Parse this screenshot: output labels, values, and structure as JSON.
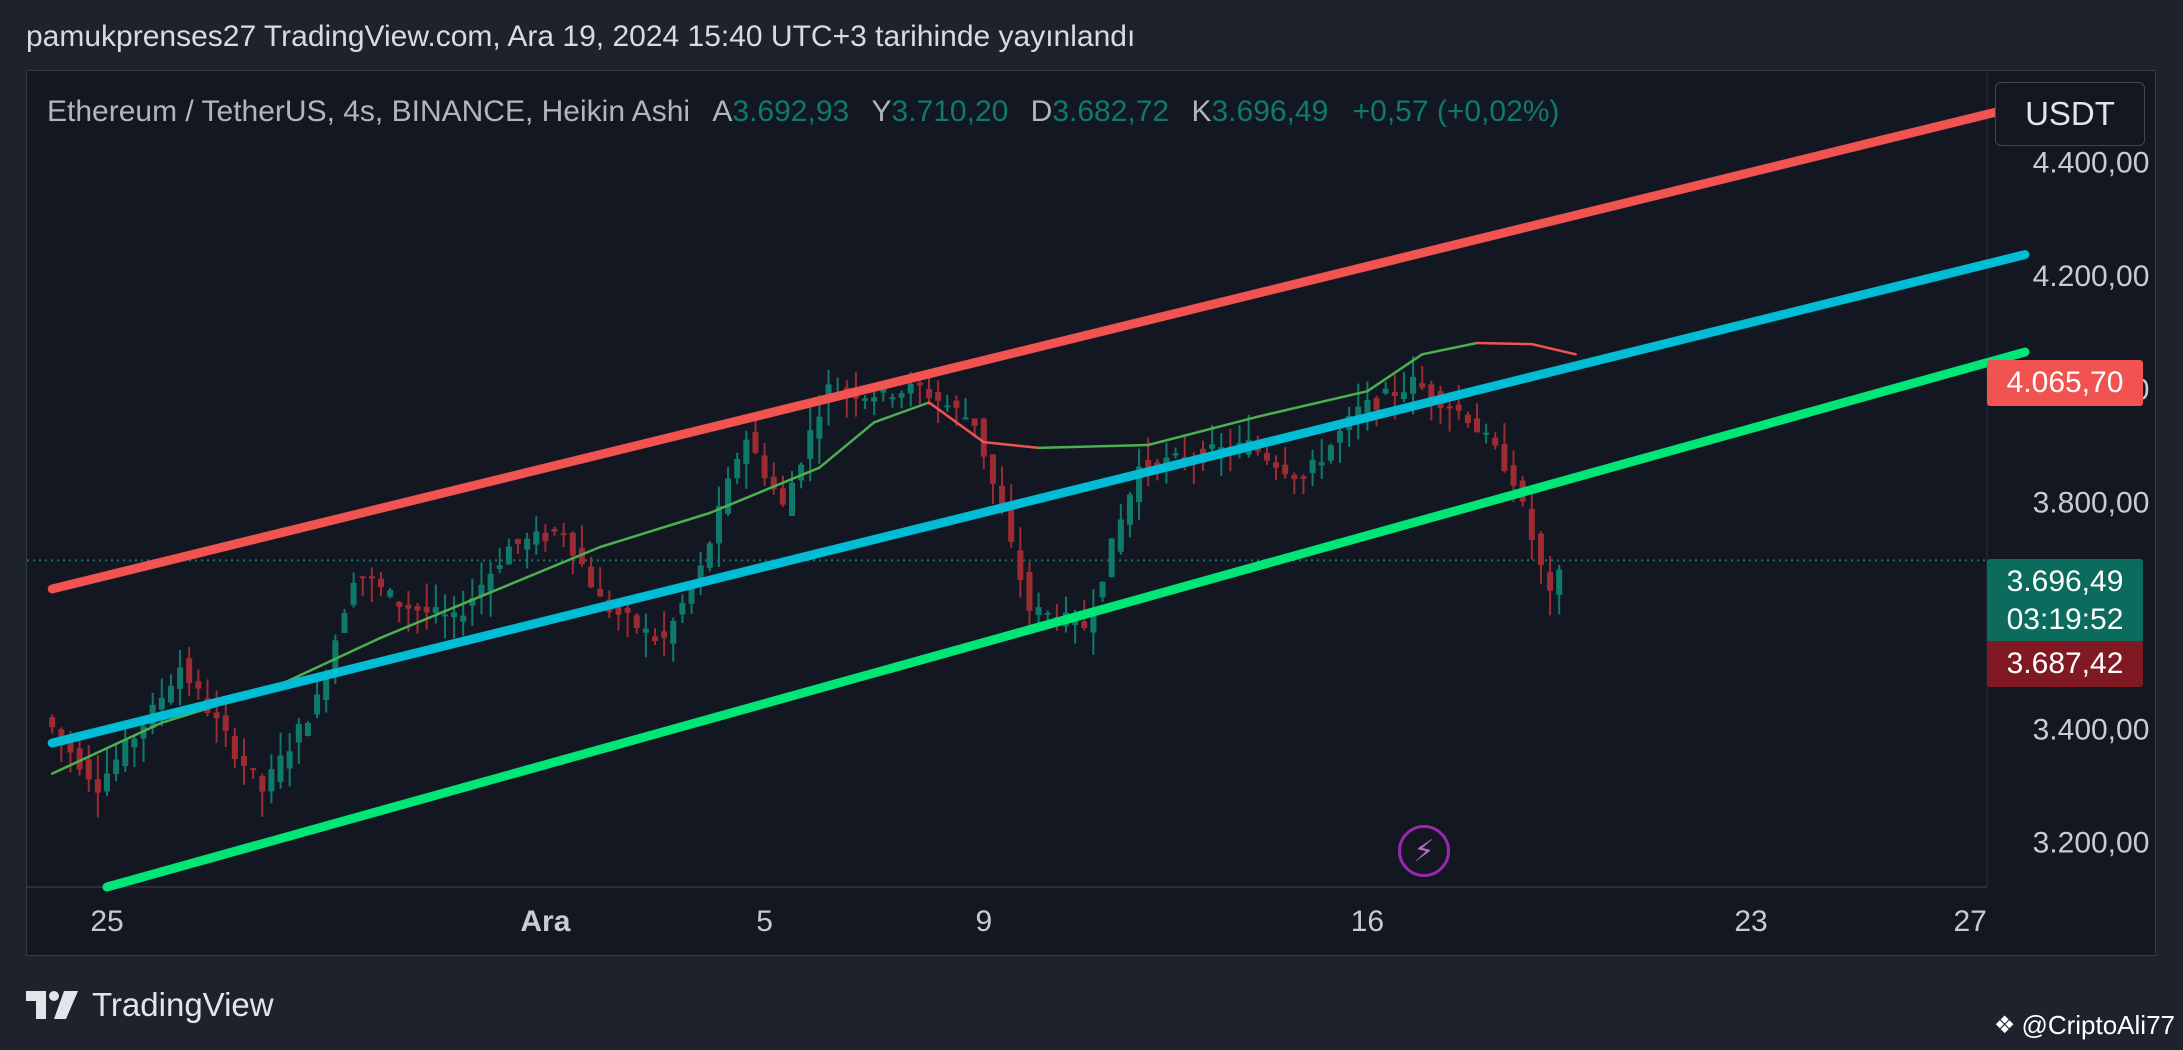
{
  "header": {
    "published_text": "pamukprenses27 TradingView.com, Ara 19, 2024 15:40 UTC+3 tarihinde yayınlandı"
  },
  "legend": {
    "symbol": "Ethereum / TetherUS, 4s, BINANCE, Heikin Ashi",
    "open_label": "A",
    "open_value": "3.692,93",
    "high_label": "Y",
    "high_value": "3.710,20",
    "low_label": "D",
    "low_value": "3.682,72",
    "close_label": "K",
    "close_value": "3.696,49",
    "change": "+0,57 (+0,02%)"
  },
  "unit_button": {
    "label": "USDT"
  },
  "price_tags": {
    "resistance": "4.065,70",
    "last_price": "3.696,49",
    "countdown": "03:19:52",
    "previous": "3.687,42"
  },
  "footer": {
    "brand": "TradingView",
    "attribution": "@CriptoAli77"
  },
  "colors": {
    "background": "#131722",
    "up_candle": "#0f7a6b",
    "down_candle": "#9c2b34",
    "upper_channel": "#f05350",
    "mid_channel": "#00bcd4",
    "lower_channel": "#00e676",
    "ma_up": "#4caf50",
    "ma_down": "#ef5350"
  },
  "chart_data": {
    "type": "candlestick",
    "y_axis": {
      "min": 3120,
      "max": 4560,
      "ticks": [
        {
          "value": 4400,
          "label": "4.400,00"
        },
        {
          "value": 4200,
          "label": "4.200,00"
        },
        {
          "value": 4000,
          "label": "4.000,00"
        },
        {
          "value": 3800,
          "label": "3.800,00"
        },
        {
          "value": 3400,
          "label": "3.400,00"
        },
        {
          "value": 3200,
          "label": "3.200,00"
        }
      ]
    },
    "x_axis": {
      "ticks": [
        {
          "day": -7,
          "label": "25",
          "bold": false
        },
        {
          "day": 1,
          "label": "Ara",
          "bold": true
        },
        {
          "day": 5,
          "label": "5",
          "bold": false
        },
        {
          "day": 9,
          "label": "9",
          "bold": false
        },
        {
          "day": 16,
          "label": "16",
          "bold": false
        },
        {
          "day": 23,
          "label": "23",
          "bold": false
        },
        {
          "day": 27,
          "label": "27",
          "bold": false
        }
      ]
    },
    "current_price": 3696.49,
    "channels": [
      {
        "role": "upper",
        "color": "#f05350",
        "start": {
          "day": -8,
          "price": 3646
        },
        "end": {
          "day": 28,
          "price": 4500
        }
      },
      {
        "role": "middle",
        "color": "#00bcd4",
        "start": {
          "day": -8,
          "price": 3374
        },
        "end": {
          "day": 28,
          "price": 4236
        }
      },
      {
        "role": "lower",
        "color": "#00e676",
        "start": {
          "day": -7,
          "price": 3120
        },
        "end": {
          "day": 28,
          "price": 4064
        }
      }
    ],
    "moving_average": [
      {
        "day": -8,
        "price": 3320
      },
      {
        "day": -6,
        "price": 3410
      },
      {
        "day": -4,
        "price": 3470
      },
      {
        "day": -2,
        "price": 3560
      },
      {
        "day": 0,
        "price": 3640
      },
      {
        "day": 2,
        "price": 3720
      },
      {
        "day": 4,
        "price": 3780
      },
      {
        "day": 6,
        "price": 3860
      },
      {
        "day": 7,
        "price": 3940
      },
      {
        "day": 8,
        "price": 3975
      },
      {
        "day": 9,
        "price": 3905
      },
      {
        "day": 10,
        "price": 3895
      },
      {
        "day": 12,
        "price": 3900
      },
      {
        "day": 14,
        "price": 3950
      },
      {
        "day": 16,
        "price": 3995
      },
      {
        "day": 17,
        "price": 4060
      },
      {
        "day": 18,
        "price": 4080
      },
      {
        "day": 19,
        "price": 4078
      },
      {
        "day": 19.8,
        "price": 4060
      }
    ],
    "price_path": [
      {
        "day": -8,
        "price": 3420
      },
      {
        "day": -7,
        "price": 3300
      },
      {
        "day": -6,
        "price": 3430
      },
      {
        "day": -5.5,
        "price": 3510
      },
      {
        "day": -4.5,
        "price": 3360
      },
      {
        "day": -4,
        "price": 3290
      },
      {
        "day": -3,
        "price": 3450
      },
      {
        "day": -2.3,
        "price": 3680
      },
      {
        "day": -1.5,
        "price": 3620
      },
      {
        "day": -0.5,
        "price": 3590
      },
      {
        "day": 0.5,
        "price": 3720
      },
      {
        "day": 1.5,
        "price": 3750
      },
      {
        "day": 2.2,
        "price": 3620
      },
      {
        "day": 3.3,
        "price": 3550
      },
      {
        "day": 4,
        "price": 3680
      },
      {
        "day": 4.8,
        "price": 3920
      },
      {
        "day": 5.5,
        "price": 3790
      },
      {
        "day": 6.3,
        "price": 4000
      },
      {
        "day": 7,
        "price": 3990
      },
      {
        "day": 8,
        "price": 4000
      },
      {
        "day": 9,
        "price": 3940
      },
      {
        "day": 10,
        "price": 3610
      },
      {
        "day": 11,
        "price": 3580
      },
      {
        "day": 12,
        "price": 3860
      },
      {
        "day": 13,
        "price": 3880
      },
      {
        "day": 14,
        "price": 3900
      },
      {
        "day": 15,
        "price": 3840
      },
      {
        "day": 16,
        "price": 3960
      },
      {
        "day": 17,
        "price": 4010
      },
      {
        "day": 18,
        "price": 3950
      },
      {
        "day": 18.8,
        "price": 3850
      },
      {
        "day": 19.5,
        "price": 3630
      },
      {
        "day": 19.8,
        "price": 3697
      }
    ]
  }
}
